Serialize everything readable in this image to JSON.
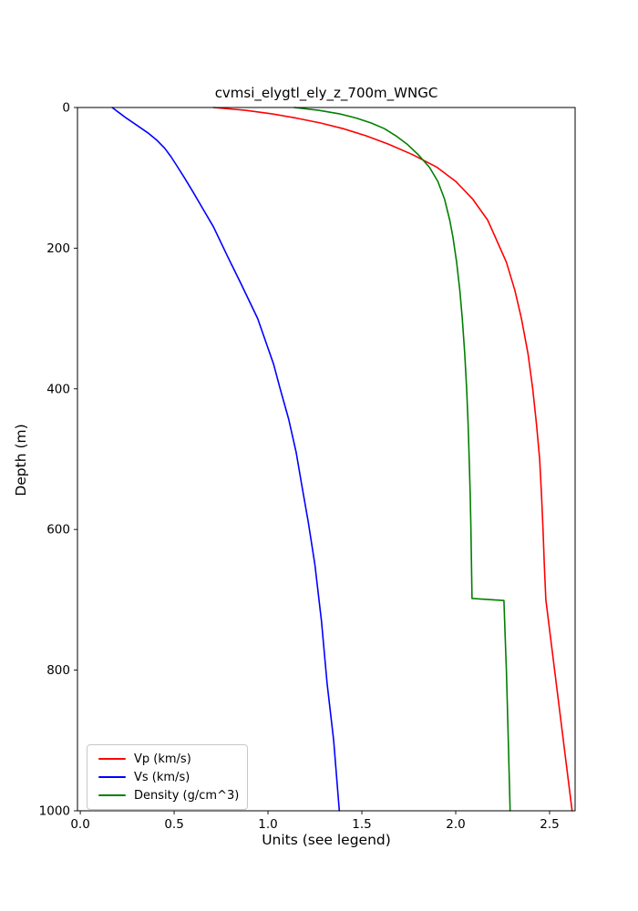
{
  "chart_data": {
    "type": "line",
    "title": "cvmsi_elygtl_ely_z_700m_WNGC",
    "xlabel": "Units (see legend)",
    "ylabel": "Depth (m)",
    "xlim": [
      -0.015,
      2.636
    ],
    "ylim": [
      0,
      1000
    ],
    "y_axis_inverted": true,
    "grid": false,
    "legend_position": "lower left",
    "x_ticks": {
      "values": [
        0.0,
        0.5,
        1.0,
        1.5,
        2.0,
        2.5
      ],
      "labels": [
        "0.0",
        "0.5",
        "1.0",
        "1.5",
        "2.0",
        "2.5"
      ]
    },
    "y_ticks": {
      "values": [
        0,
        200,
        400,
        600,
        800,
        1000
      ],
      "labels": [
        "0",
        "200",
        "400",
        "600",
        "800",
        "1000"
      ]
    },
    "series": [
      {
        "name": "Vp",
        "label": "Vp (km/s)",
        "color": "#ff0000",
        "points_format": [
          "depth_m",
          "value"
        ],
        "points": [
          [
            0,
            0.71
          ],
          [
            4,
            0.88
          ],
          [
            9,
            1.02
          ],
          [
            15,
            1.15
          ],
          [
            22,
            1.28
          ],
          [
            30,
            1.4
          ],
          [
            40,
            1.52
          ],
          [
            52,
            1.64
          ],
          [
            67,
            1.77
          ],
          [
            85,
            1.9
          ],
          [
            105,
            2.0
          ],
          [
            130,
            2.09
          ],
          [
            160,
            2.17
          ],
          [
            184,
            2.21
          ],
          [
            220,
            2.27
          ],
          [
            260,
            2.315
          ],
          [
            300,
            2.35
          ],
          [
            350,
            2.385
          ],
          [
            400,
            2.41
          ],
          [
            450,
            2.43
          ],
          [
            500,
            2.447
          ],
          [
            550,
            2.457
          ],
          [
            600,
            2.465
          ],
          [
            650,
            2.472
          ],
          [
            700,
            2.48
          ],
          [
            775,
            2.515
          ],
          [
            850,
            2.55
          ],
          [
            925,
            2.585
          ],
          [
            1000,
            2.62
          ]
        ]
      },
      {
        "name": "Vs",
        "label": "Vs (km/s)",
        "color": "#0000ff",
        "points_format": [
          "depth_m",
          "value"
        ],
        "points": [
          [
            0,
            0.17
          ],
          [
            8,
            0.21
          ],
          [
            15,
            0.245
          ],
          [
            25,
            0.3
          ],
          [
            36,
            0.36
          ],
          [
            47,
            0.41
          ],
          [
            58,
            0.45
          ],
          [
            70,
            0.483
          ],
          [
            81,
            0.51
          ],
          [
            100,
            0.555
          ],
          [
            120,
            0.6
          ],
          [
            145,
            0.655
          ],
          [
            170,
            0.71
          ],
          [
            212,
            0.785
          ],
          [
            250,
            0.855
          ],
          [
            300,
            0.945
          ],
          [
            365,
            1.03
          ],
          [
            400,
            1.065
          ],
          [
            443,
            1.11
          ],
          [
            490,
            1.15
          ],
          [
            534,
            1.178
          ],
          [
            590,
            1.215
          ],
          [
            650,
            1.25
          ],
          [
            730,
            1.285
          ],
          [
            819,
            1.315
          ],
          [
            900,
            1.35
          ],
          [
            1000,
            1.38
          ]
        ]
      },
      {
        "name": "Density",
        "label": "Density (g/cm^3)",
        "color": "#008000",
        "points_format": [
          "depth_m",
          "value"
        ],
        "points": [
          [
            0,
            1.14
          ],
          [
            4,
            1.27
          ],
          [
            9,
            1.38
          ],
          [
            15,
            1.47
          ],
          [
            22,
            1.55
          ],
          [
            30,
            1.62
          ],
          [
            40,
            1.68
          ],
          [
            52,
            1.74
          ],
          [
            67,
            1.8
          ],
          [
            85,
            1.86
          ],
          [
            105,
            1.905
          ],
          [
            130,
            1.94
          ],
          [
            160,
            1.968
          ],
          [
            184,
            1.985
          ],
          [
            220,
            2.005
          ],
          [
            260,
            2.022
          ],
          [
            300,
            2.035
          ],
          [
            350,
            2.048
          ],
          [
            400,
            2.058
          ],
          [
            450,
            2.066
          ],
          [
            500,
            2.072
          ],
          [
            550,
            2.077
          ],
          [
            600,
            2.081
          ],
          [
            650,
            2.084
          ],
          [
            698,
            2.087
          ],
          [
            701,
            2.257
          ],
          [
            750,
            2.263
          ],
          [
            800,
            2.27
          ],
          [
            900,
            2.28
          ],
          [
            1000,
            2.29
          ]
        ]
      }
    ]
  }
}
